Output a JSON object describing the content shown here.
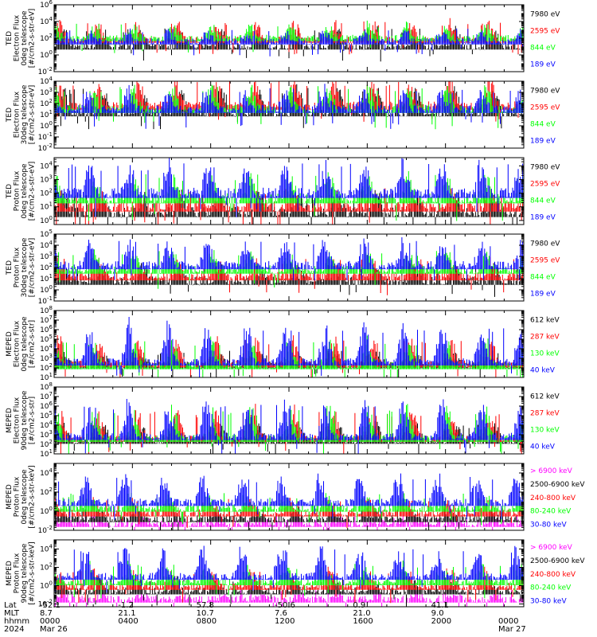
{
  "chart_data": [
    {
      "type": "line",
      "ylabel_lines": [
        "TED",
        "Electron Flux",
        "0deg telescope",
        "[#/cm2-s-str-eV]"
      ],
      "y_ticks": [
        "10^6",
        "10^4",
        "10^2",
        "10^0",
        "10^-2"
      ],
      "ylim_log10": [
        -2,
        6
      ],
      "series": [
        {
          "name": "7980 eV",
          "color": "#000000",
          "baseline_log10": 1.0,
          "peak_log10": 2.6,
          "seed": 11
        },
        {
          "name": "2595 eV",
          "color": "#ff0000",
          "baseline_log10": 1.8,
          "peak_log10": 3.4,
          "seed": 12
        },
        {
          "name": "844 eV",
          "color": "#00ff00",
          "baseline_log10": 2.0,
          "peak_log10": 3.2,
          "seed": 13
        },
        {
          "name": "189 eV",
          "color": "#0000ff",
          "baseline_log10": 1.6,
          "peak_log10": 2.6,
          "seed": 14
        }
      ]
    },
    {
      "type": "line",
      "ylabel_lines": [
        "TED",
        "Electron Flux",
        "30deg telescope",
        "[#/cm2-s-str-eV]"
      ],
      "y_ticks": [
        "10^4",
        "10^3",
        "10^2",
        "10^1",
        "10^0",
        "10^-1",
        "10^-2"
      ],
      "ylim_log10": [
        -2,
        4
      ],
      "series": [
        {
          "name": "7980 eV",
          "color": "#000000",
          "baseline_log10": 1.2,
          "peak_log10": 2.8,
          "seed": 21
        },
        {
          "name": "2595 eV",
          "color": "#ff0000",
          "baseline_log10": 1.8,
          "peak_log10": 3.5,
          "seed": 22
        },
        {
          "name": "844 eV",
          "color": "#00ff00",
          "baseline_log10": 1.5,
          "peak_log10": 3.0,
          "seed": 23
        },
        {
          "name": "189 eV",
          "color": "#0000ff",
          "baseline_log10": 1.5,
          "peak_log10": 2.8,
          "seed": 24
        }
      ]
    },
    {
      "type": "line",
      "ylabel_lines": [
        "TED",
        "Proton Flux",
        "0deg telescope",
        "[#/cm2-s-str-eV]"
      ],
      "y_ticks": [
        "10^4",
        "10^3",
        "10^2",
        "10^1",
        "10^0"
      ],
      "ylim_log10": [
        -0.3,
        4.6
      ],
      "series": [
        {
          "name": "7980 eV",
          "color": "#000000",
          "baseline_log10": 0.6,
          "peak_log10": 1.6,
          "seed": 31
        },
        {
          "name": "2595 eV",
          "color": "#ff0000",
          "baseline_log10": 1.0,
          "peak_log10": 1.8,
          "seed": 32
        },
        {
          "name": "844 eV",
          "color": "#00ff00",
          "baseline_log10": 1.6,
          "peak_log10": 2.8,
          "seed": 33
        },
        {
          "name": "189 eV",
          "color": "#0000ff",
          "baseline_log10": 2.0,
          "peak_log10": 3.6,
          "seed": 34
        }
      ]
    },
    {
      "type": "line",
      "ylabel_lines": [
        "TED",
        "Proton Flux",
        "30deg telescope",
        "[#/cm2-s-str-eV]"
      ],
      "y_ticks": [
        "10^5",
        "10^4",
        "10^3",
        "10^2",
        "10^1",
        "10^0",
        "10^-1"
      ],
      "ylim_log10": [
        -1,
        5
      ],
      "series": [
        {
          "name": "7980 eV",
          "color": "#000000",
          "baseline_log10": 0.8,
          "peak_log10": 1.8,
          "seed": 41
        },
        {
          "name": "2595 eV",
          "color": "#ff0000",
          "baseline_log10": 1.2,
          "peak_log10": 2.2,
          "seed": 42
        },
        {
          "name": "844 eV",
          "color": "#00ff00",
          "baseline_log10": 1.8,
          "peak_log10": 3.0,
          "seed": 43
        },
        {
          "name": "189 eV",
          "color": "#0000ff",
          "baseline_log10": 2.2,
          "peak_log10": 3.8,
          "seed": 44
        }
      ]
    },
    {
      "type": "line",
      "ylabel_lines": [
        "MEPED",
        "Electron Flux",
        "0deg telescope",
        "[#/cm2-s-str]"
      ],
      "y_ticks": [
        "10^8",
        "10^7",
        "10^6",
        "10^5",
        "10^4",
        "10^3",
        "10^2",
        "10^1"
      ],
      "ylim_log10": [
        1,
        8
      ],
      "series": [
        {
          "name": "612 keV",
          "color": "#000000",
          "baseline_log10": 2.3,
          "peak_log10": 3.2,
          "seed": 51
        },
        {
          "name": "287 keV",
          "color": "#ff0000",
          "baseline_log10": 2.4,
          "peak_log10": 4.4,
          "seed": 52
        },
        {
          "name": "130 keV",
          "color": "#00ff00",
          "baseline_log10": 2.2,
          "peak_log10": 4.2,
          "seed": 53
        },
        {
          "name": "40 keV",
          "color": "#0000ff",
          "baseline_log10": 2.6,
          "peak_log10": 5.6,
          "seed": 54
        }
      ]
    },
    {
      "type": "line",
      "ylabel_lines": [
        "MEPED",
        "Electron Flux",
        "90deg telescope",
        "[#/cm2-s-str]"
      ],
      "y_ticks": [
        "10^8",
        "10^7",
        "10^6",
        "10^5",
        "10^4",
        "10^3",
        "10^2",
        "10^1"
      ],
      "ylim_log10": [
        1,
        8
      ],
      "series": [
        {
          "name": "612 keV",
          "color": "#000000",
          "baseline_log10": 2.4,
          "peak_log10": 3.6,
          "seed": 61
        },
        {
          "name": "287 keV",
          "color": "#ff0000",
          "baseline_log10": 2.6,
          "peak_log10": 4.8,
          "seed": 62
        },
        {
          "name": "130 keV",
          "color": "#00ff00",
          "baseline_log10": 2.6,
          "peak_log10": 5.0,
          "seed": 63
        },
        {
          "name": "40 keV",
          "color": "#0000ff",
          "baseline_log10": 2.8,
          "peak_log10": 5.6,
          "seed": 64
        }
      ]
    },
    {
      "type": "line",
      "ylabel_lines": [
        "MEPED",
        "Proton Flux",
        "0deg telescope",
        "[#/cm2-s-str-keV]"
      ],
      "y_ticks": [
        "10^4",
        "10^2",
        "10^0",
        "10^-2"
      ],
      "ylim_log10": [
        -2,
        5
      ],
      "series": [
        {
          "name": "> 6900 keV",
          "color": "#ff00ff",
          "baseline_log10": -1.3,
          "peak_log10": -0.9,
          "seed": 71
        },
        {
          "name": "2500-6900 keV",
          "color": "#000000",
          "baseline_log10": -0.8,
          "peak_log10": -0.1,
          "seed": 72
        },
        {
          "name": "240-800 keV",
          "color": "#ff0000",
          "baseline_log10": -0.2,
          "peak_log10": 0.8,
          "seed": 73
        },
        {
          "name": "80-240 keV",
          "color": "#00ff00",
          "baseline_log10": 0.3,
          "peak_log10": 1.3,
          "seed": 74
        },
        {
          "name": "30-80 keV",
          "color": "#0000ff",
          "baseline_log10": 0.9,
          "peak_log10": 3.0,
          "seed": 75
        }
      ]
    },
    {
      "type": "line",
      "ylabel_lines": [
        "MEPED",
        "Proton Flux",
        "90deg telescope",
        "[#/cm2-s-str-keV]"
      ],
      "y_ticks": [
        "10^4",
        "10^2",
        "10^0",
        "10^-2"
      ],
      "ylim_log10": [
        -2.3,
        5
      ],
      "series": [
        {
          "name": "> 6900 keV",
          "color": "#ff00ff",
          "baseline_log10": -1.5,
          "peak_log10": -1.0,
          "seed": 81
        },
        {
          "name": "2500-6900 keV",
          "color": "#000000",
          "baseline_log10": -0.6,
          "peak_log10": 0.4,
          "seed": 82
        },
        {
          "name": "240-800 keV",
          "color": "#ff0000",
          "baseline_log10": -0.1,
          "peak_log10": 1.2,
          "seed": 83
        },
        {
          "name": "80-240 keV",
          "color": "#00ff00",
          "baseline_log10": 0.4,
          "peak_log10": 1.8,
          "seed": 84
        },
        {
          "name": "30-80 keV",
          "color": "#0000ff",
          "baseline_log10": 1.0,
          "peak_log10": 3.4,
          "seed": 85
        }
      ]
    }
  ],
  "x_axis": {
    "row_labels": [
      "Lat",
      "MLT",
      "hhmm",
      "2024"
    ],
    "columns": [
      {
        "lat": "-52.1",
        "mlt": "8.7",
        "hhmm": "0000",
        "date": "Mar 26"
      },
      {
        "lat": "-1.2",
        "mlt": "21.1",
        "hhmm": "0400",
        "date": ""
      },
      {
        "lat": "57.8",
        "mlt": "10.7",
        "hhmm": "0800",
        "date": ""
      },
      {
        "lat": "-50.6",
        "mlt": "7.6",
        "hhmm": "1200",
        "date": ""
      },
      {
        "lat": "0.9",
        "mlt": "21.0",
        "hhmm": "1600",
        "date": ""
      },
      {
        "lat": "41.1",
        "mlt": "9.0",
        "hhmm": "2000",
        "date": ""
      },
      {
        "lat": "",
        "mlt": "",
        "hhmm": "0000",
        "date": "Mar 27"
      }
    ]
  }
}
